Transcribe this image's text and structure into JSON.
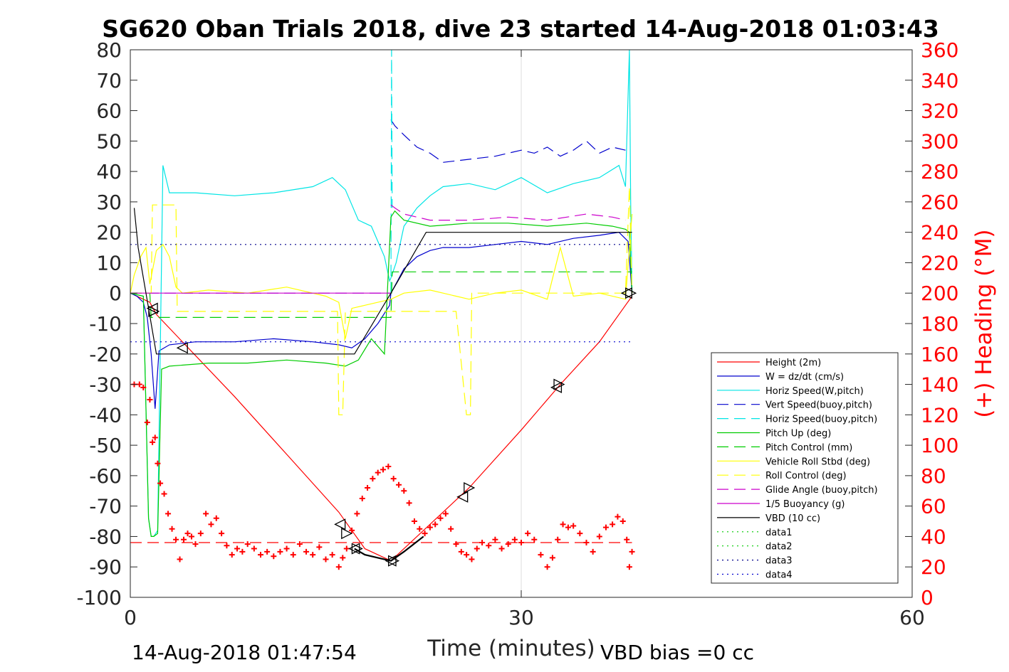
{
  "chart_data": {
    "type": "line",
    "title": "SG620 Oban Trials 2018, dive 23 started 14-Aug-2018 01:03:43",
    "xlabel": "Time (minutes)",
    "ylabel_right": "(+) Heading (°M)",
    "xlim": [
      0,
      60
    ],
    "ylim_left": [
      -100,
      80
    ],
    "ylim_right": [
      0,
      360
    ],
    "x_ticks": [
      "0",
      "30",
      "60"
    ],
    "y_ticks_left": [
      "80",
      "70",
      "60",
      "50",
      "40",
      "30",
      "20",
      "10",
      "0",
      "-10",
      "-20",
      "-30",
      "-40",
      "-50",
      "-60",
      "-70",
      "-80",
      "-90",
      "-100"
    ],
    "y_ticks_right": [
      "360",
      "340",
      "320",
      "300",
      "280",
      "260",
      "240",
      "220",
      "200",
      "180",
      "160",
      "140",
      "120",
      "100",
      "80",
      "60",
      "40",
      "20",
      "0"
    ],
    "grid": "x-only",
    "legend_position": "lower-right",
    "footer_left": "14-Aug-2018 01:47:54",
    "footer_right": "VBD bias =0 cc",
    "series": [
      {
        "name": "Height (2m)",
        "color": "#ff0000",
        "style": "solid",
        "x": [
          0,
          1.5,
          2,
          4,
          8,
          12,
          16,
          18,
          20,
          22,
          26,
          30,
          33,
          36,
          38,
          38.5
        ],
        "y": [
          0,
          -3,
          -7,
          -16,
          -34,
          -53,
          -72,
          -84,
          -88,
          -80,
          -64,
          -45,
          -30,
          -16,
          -4,
          -1
        ]
      },
      {
        "name": "W = dz/dt (cm/s)",
        "color": "#0000cd",
        "style": "solid",
        "x": [
          0,
          0.5,
          1,
          1.3,
          1.6,
          1.9,
          2.2,
          3,
          5,
          8,
          11,
          14,
          16,
          17,
          18,
          19,
          19.9,
          20,
          20.5,
          21,
          22,
          23,
          24,
          26,
          28,
          30,
          32,
          34,
          36,
          37.5,
          38.2,
          38.5
        ],
        "y": [
          0,
          -1,
          -3,
          -8,
          -20,
          -38,
          -19,
          -17,
          -16,
          -16,
          -15,
          -16,
          -17,
          -18,
          -15,
          -10,
          -4,
          0,
          4,
          8,
          12,
          14,
          15,
          15,
          16,
          17,
          16,
          18,
          19,
          20,
          17,
          0
        ]
      },
      {
        "name": "Horiz Speed(W,pitch)",
        "color": "#00e5e5",
        "style": "solid",
        "x": [
          0,
          1,
          1.4,
          1.6,
          1.8,
          2.1,
          2.5,
          3,
          5,
          8,
          11,
          14,
          15.5,
          16.5,
          17.5,
          18.5,
          19.5,
          19.9,
          20,
          20.4,
          21,
          22,
          23,
          24,
          26,
          28,
          30,
          32,
          34,
          36,
          37.5,
          38,
          38.3,
          38.4,
          38.5
        ],
        "y": [
          0,
          -1,
          -74,
          -80,
          -80,
          -78,
          42,
          33,
          33,
          32,
          33,
          35,
          38,
          34,
          24,
          22,
          12,
          4,
          5,
          10,
          22,
          28,
          32,
          35,
          36,
          34,
          38,
          33,
          36,
          38,
          42,
          35,
          80,
          30,
          0
        ]
      },
      {
        "name": "Vert Speed(buoy,pitch)",
        "color": "#0000cd",
        "style": "dashed",
        "x": [
          20,
          20.3,
          21,
          22,
          23,
          24,
          26,
          28,
          30,
          31,
          32,
          33,
          34,
          35,
          36,
          37,
          38
        ],
        "y": [
          57,
          55,
          52,
          48,
          46,
          43,
          44,
          45,
          47,
          46,
          48,
          45,
          47,
          50,
          46,
          48,
          47
        ]
      },
      {
        "name": "Horiz Speed(buoy,pitch)",
        "color": "#00e5e5",
        "style": "dashed",
        "x": [
          20,
          20.05,
          20.1
        ],
        "y": [
          0,
          80,
          28
        ]
      },
      {
        "name": "Pitch Up (deg)",
        "color": "#00cc00",
        "style": "solid",
        "x": [
          0,
          1,
          1.4,
          1.6,
          1.8,
          2.1,
          2.4,
          3,
          6,
          9,
          12,
          15,
          16.5,
          17.5,
          18.5,
          19.5,
          20,
          20.3,
          21,
          23,
          26,
          29,
          32,
          35,
          37,
          38,
          38.3,
          38.5
        ],
        "y": [
          0,
          -1,
          -74,
          -80,
          -80,
          -79,
          -25,
          -24,
          -23,
          -23,
          -22,
          -23,
          -24,
          -22,
          -15,
          -20,
          25,
          27,
          24,
          22,
          23,
          23,
          22,
          23,
          22,
          21,
          20,
          0
        ]
      },
      {
        "name": "Pitch Control (mm)",
        "color": "#00cc00",
        "style": "dashed",
        "x": [
          0,
          1.5,
          1.6,
          16.5,
          16.6,
          20,
          20.1,
          38.5
        ],
        "y": [
          0,
          0,
          -8,
          -8,
          -8,
          -8,
          7,
          7
        ]
      },
      {
        "name": "Vehicle Roll Stbd (deg)",
        "color": "#ffff00",
        "style": "solid",
        "x": [
          0,
          0.3,
          0.8,
          1.2,
          1.5,
          2,
          2.5,
          3,
          3.5,
          4,
          6,
          9,
          12,
          15,
          16,
          16.5,
          17,
          18,
          19,
          20,
          21,
          23,
          25,
          26,
          28,
          30,
          32,
          33,
          34,
          36,
          38,
          38.5
        ],
        "y": [
          0,
          6,
          12,
          15,
          3,
          14,
          16,
          12,
          2,
          0,
          1,
          0,
          2,
          -1,
          -3,
          -15,
          -5,
          -4,
          -3,
          -2,
          0,
          1,
          -1,
          -2,
          0,
          1,
          -2,
          15,
          -1,
          0,
          -2,
          26
        ]
      },
      {
        "name": "Roll Control (deg)",
        "color": "#ffff00",
        "style": "dashed",
        "x": [
          0,
          1.6,
          1.7,
          2.5,
          3.5,
          3.6,
          15.9,
          16,
          16.3,
          16.5,
          16.6,
          20,
          25,
          25.8,
          26.1,
          26.2,
          38,
          38.3,
          38.5
        ],
        "y": [
          0,
          0,
          29,
          29,
          29,
          -6,
          -6,
          -40,
          -40,
          -6,
          -6,
          -6,
          -6,
          -40,
          -40,
          0,
          0,
          35,
          0
        ]
      },
      {
        "name": "Glide Angle (buoy,pitch)",
        "color": "#cc00cc",
        "style": "dashed",
        "x": [
          20,
          20.3,
          21,
          23,
          26,
          29,
          32,
          35,
          37,
          38
        ],
        "y": [
          29,
          28,
          26,
          24,
          24,
          25,
          24,
          26,
          25,
          24
        ]
      },
      {
        "name": "1/5 Buoyancy (g)",
        "color": "#cc00cc",
        "style": "solid",
        "x": [
          0,
          20
        ],
        "y": [
          0,
          0
        ]
      },
      {
        "name": "VBD (10 cc)",
        "color": "#000000",
        "style": "solid",
        "x": [
          0.3,
          0.6,
          1.2,
          1.6,
          2,
          17.2,
          20,
          22.7,
          38.5
        ],
        "y": [
          28,
          15,
          0,
          -10,
          -20,
          -20,
          0,
          20,
          20
        ]
      },
      {
        "name": "data1",
        "color": "#00cc00",
        "style": "dotted",
        "x": [],
        "y": []
      },
      {
        "name": "data2",
        "color": "#00cc00",
        "style": "dotted",
        "x": [],
        "y": []
      },
      {
        "name": "data3",
        "color": "#00008b",
        "style": "dotted",
        "x": [
          0,
          38.5
        ],
        "y": [
          16,
          16
        ]
      },
      {
        "name": "data4",
        "color": "#0000cd",
        "style": "dotted",
        "x": [
          0,
          38.5
        ],
        "y": [
          -16,
          -16
        ]
      }
    ],
    "reference_lines": [
      {
        "color": "#ff0000",
        "style": "dashed",
        "y": -82,
        "x": [
          0,
          38.5
        ]
      },
      {
        "color": "#8a2be2",
        "style": "dashed",
        "y": 0,
        "x": [
          0,
          20
        ]
      }
    ],
    "heading_series": {
      "name": "Heading",
      "color": "#ff0000",
      "marker": "+",
      "axis": "right",
      "x": [
        0.3,
        0.7,
        1.0,
        1.3,
        1.5,
        1.7,
        1.9,
        2.1,
        2.3,
        2.6,
        2.9,
        3.2,
        3.5,
        3.8,
        4.1,
        4.4,
        4.7,
        5.0,
        5.4,
        5.8,
        6.2,
        6.6,
        7.0,
        7.4,
        7.8,
        8.2,
        8.6,
        9.0,
        9.5,
        10.0,
        10.5,
        11.0,
        11.5,
        12.0,
        12.5,
        13.0,
        13.5,
        14.0,
        14.5,
        15.0,
        15.5,
        16.0,
        16.3,
        16.6,
        17.0,
        17.4,
        17.8,
        18.2,
        18.6,
        19.0,
        19.4,
        19.8,
        20.2,
        20.6,
        21.0,
        21.4,
        21.8,
        22.2,
        22.6,
        23.0,
        23.4,
        23.8,
        24.2,
        24.6,
        25.0,
        25.4,
        25.8,
        26.2,
        26.6,
        27.0,
        27.5,
        28.0,
        28.5,
        29.0,
        29.5,
        30.0,
        30.5,
        31.0,
        31.5,
        32.0,
        32.4,
        32.8,
        33.2,
        33.6,
        34.0,
        34.5,
        35.0,
        35.5,
        36.0,
        36.5,
        37.0,
        37.4,
        37.8,
        38.1,
        38.3,
        38.5
      ],
      "y": [
        140,
        140,
        138,
        115,
        130,
        102,
        105,
        88,
        75,
        68,
        55,
        45,
        38,
        25,
        38,
        42,
        40,
        35,
        42,
        55,
        48,
        52,
        42,
        34,
        28,
        32,
        30,
        35,
        32,
        28,
        30,
        27,
        30,
        32,
        28,
        35,
        30,
        28,
        33,
        25,
        28,
        20,
        26,
        32,
        44,
        55,
        65,
        72,
        78,
        82,
        84,
        86,
        78,
        74,
        70,
        62,
        50,
        45,
        42,
        46,
        48,
        52,
        55,
        45,
        35,
        30,
        28,
        25,
        32,
        36,
        34,
        38,
        32,
        35,
        38,
        36,
        42,
        38,
        28,
        20,
        26,
        38,
        48,
        46,
        47,
        42,
        36,
        30,
        40,
        46,
        48,
        53,
        50,
        38,
        20,
        30
      ]
    },
    "triangle_markers": [
      {
        "x": 1.7,
        "y": -5,
        "dir": "left"
      },
      {
        "x": 1.8,
        "y": -6,
        "dir": "right"
      },
      {
        "x": 4.0,
        "y": -18,
        "dir": "left"
      },
      {
        "x": 16.1,
        "y": -76,
        "dir": "left"
      },
      {
        "x": 16.6,
        "y": -79,
        "dir": "right"
      },
      {
        "x": 17.2,
        "y": -84,
        "dir": "left"
      },
      {
        "x": 17.4,
        "y": -84,
        "dir": "right"
      },
      {
        "x": 20.0,
        "y": -88,
        "dir": "left"
      },
      {
        "x": 20.2,
        "y": -88,
        "dir": "right"
      },
      {
        "x": 25.5,
        "y": -67,
        "dir": "left"
      },
      {
        "x": 26.0,
        "y": -64,
        "dir": "right"
      },
      {
        "x": 32.7,
        "y": -31,
        "dir": "left"
      },
      {
        "x": 32.9,
        "y": -30,
        "dir": "right"
      },
      {
        "x": 38.1,
        "y": 0,
        "dir": "left"
      },
      {
        "x": 38.4,
        "y": 0,
        "dir": "right"
      }
    ],
    "black_curve": {
      "x": [
        17.2,
        18,
        19,
        20,
        21,
        22.5
      ],
      "y": [
        -84,
        -86,
        -87,
        -88,
        -85,
        -80
      ]
    }
  }
}
